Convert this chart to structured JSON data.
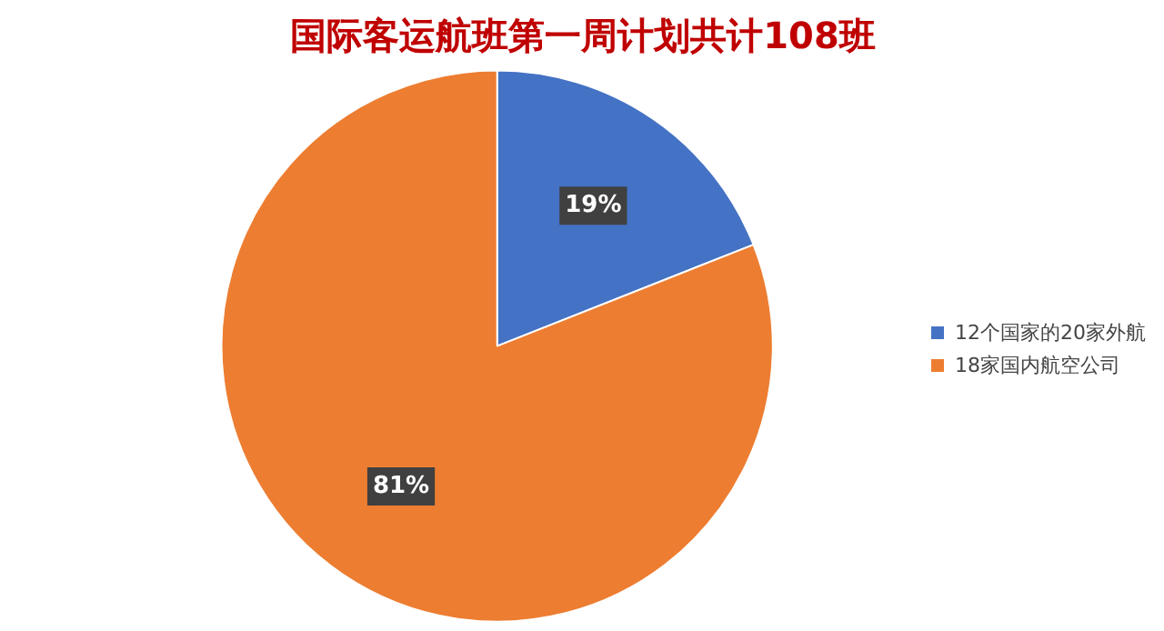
{
  "chart_data": {
    "type": "pie",
    "title": "国际客运航班第一周计划共计108班",
    "categories": [
      "12个国家的20家外航",
      "18家国内航空公司"
    ],
    "values": [
      19,
      81
    ],
    "colors": [
      "#4472c4",
      "#ed7d31"
    ],
    "value_labels": [
      "19%",
      "81%"
    ],
    "legend": "right"
  }
}
